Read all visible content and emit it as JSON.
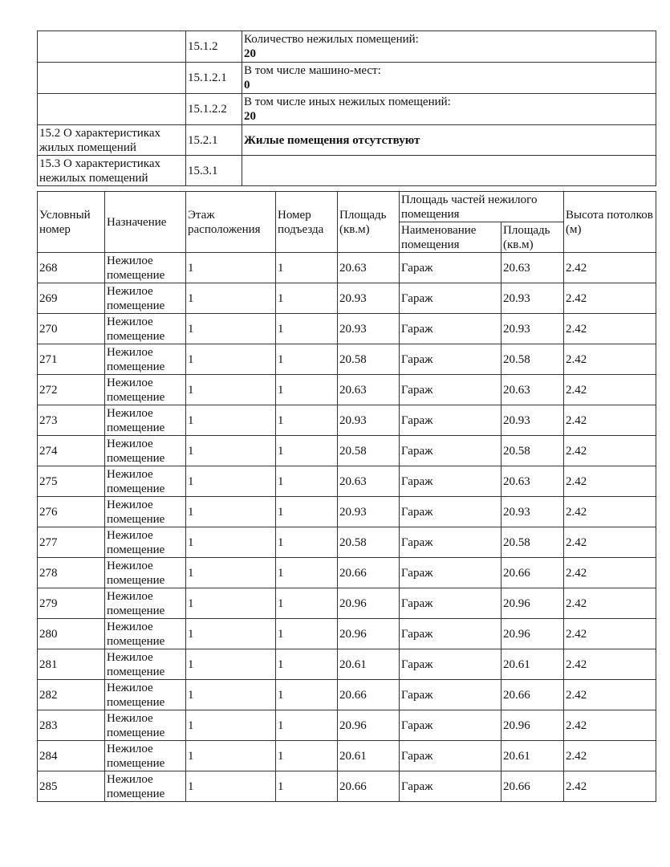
{
  "summary_rows": [
    {
      "section": "",
      "code": "15.1.2",
      "label": "Количество нежилых помещений:",
      "value": "20"
    },
    {
      "section": "",
      "code": "15.1.2.1",
      "label": "В том числе машино-мест:",
      "value": "0"
    },
    {
      "section": "",
      "code": "15.1.2.2",
      "label": "В том числе иных нежилых помещений:",
      "value": "20"
    },
    {
      "section": "15.2 О характеристиках жилых помещений",
      "code": "15.2.1",
      "label": "",
      "value": "Жилые помещения отсутствуют"
    },
    {
      "section": "15.3 О характеристиках нежилых помещений",
      "code": "15.3.1",
      "label": "",
      "value": ""
    }
  ],
  "table": {
    "headers": {
      "number": "Условный номер",
      "purpose": "Назначение",
      "floor": "Этаж расположения",
      "entrance": "Номер подъезда",
      "area": "Площадь (кв.м)",
      "parts_group": "Площадь частей нежилого помещения",
      "part_name": "Наименование помещения",
      "part_area": "Площадь (кв.м)",
      "height": "Высота потолков (м)"
    },
    "rows": [
      [
        "268",
        "Нежилое помещение",
        "1",
        "1",
        "20.63",
        "Гараж",
        "20.63",
        "2.42"
      ],
      [
        "269",
        "Нежилое помещение",
        "1",
        "1",
        "20.93",
        "Гараж",
        "20.93",
        "2.42"
      ],
      [
        "270",
        "Нежилое помещение",
        "1",
        "1",
        "20.93",
        "Гараж",
        "20.93",
        "2.42"
      ],
      [
        "271",
        "Нежилое помещение",
        "1",
        "1",
        "20.58",
        "Гараж",
        "20.58",
        "2.42"
      ],
      [
        "272",
        "Нежилое помещение",
        "1",
        "1",
        "20.63",
        "Гараж",
        "20.63",
        "2.42"
      ],
      [
        "273",
        "Нежилое помещение",
        "1",
        "1",
        "20.93",
        "Гараж",
        "20.93",
        "2.42"
      ],
      [
        "274",
        "Нежилое помещение",
        "1",
        "1",
        "20.58",
        "Гараж",
        "20.58",
        "2.42"
      ],
      [
        "275",
        "Нежилое помещение",
        "1",
        "1",
        "20.63",
        "Гараж",
        "20.63",
        "2.42"
      ],
      [
        "276",
        "Нежилое помещение",
        "1",
        "1",
        "20.93",
        "Гараж",
        "20.93",
        "2.42"
      ],
      [
        "277",
        "Нежилое помещение",
        "1",
        "1",
        "20.58",
        "Гараж",
        "20.58",
        "2.42"
      ],
      [
        "278",
        "Нежилое помещение",
        "1",
        "1",
        "20.66",
        "Гараж",
        "20.66",
        "2.42"
      ],
      [
        "279",
        "Нежилое помещение",
        "1",
        "1",
        "20.96",
        "Гараж",
        "20.96",
        "2.42"
      ],
      [
        "280",
        "Нежилое помещение",
        "1",
        "1",
        "20.96",
        "Гараж",
        "20.96",
        "2.42"
      ],
      [
        "281",
        "Нежилое помещение",
        "1",
        "1",
        "20.61",
        "Гараж",
        "20.61",
        "2.42"
      ],
      [
        "282",
        "Нежилое помещение",
        "1",
        "1",
        "20.66",
        "Гараж",
        "20.66",
        "2.42"
      ],
      [
        "283",
        "Нежилое помещение",
        "1",
        "1",
        "20.96",
        "Гараж",
        "20.96",
        "2.42"
      ],
      [
        "284",
        "Нежилое помещение",
        "1",
        "1",
        "20.61",
        "Гараж",
        "20.61",
        "2.42"
      ],
      [
        "285",
        "Нежилое помещение",
        "1",
        "1",
        "20.66",
        "Гараж",
        "20.66",
        "2.42"
      ]
    ]
  }
}
